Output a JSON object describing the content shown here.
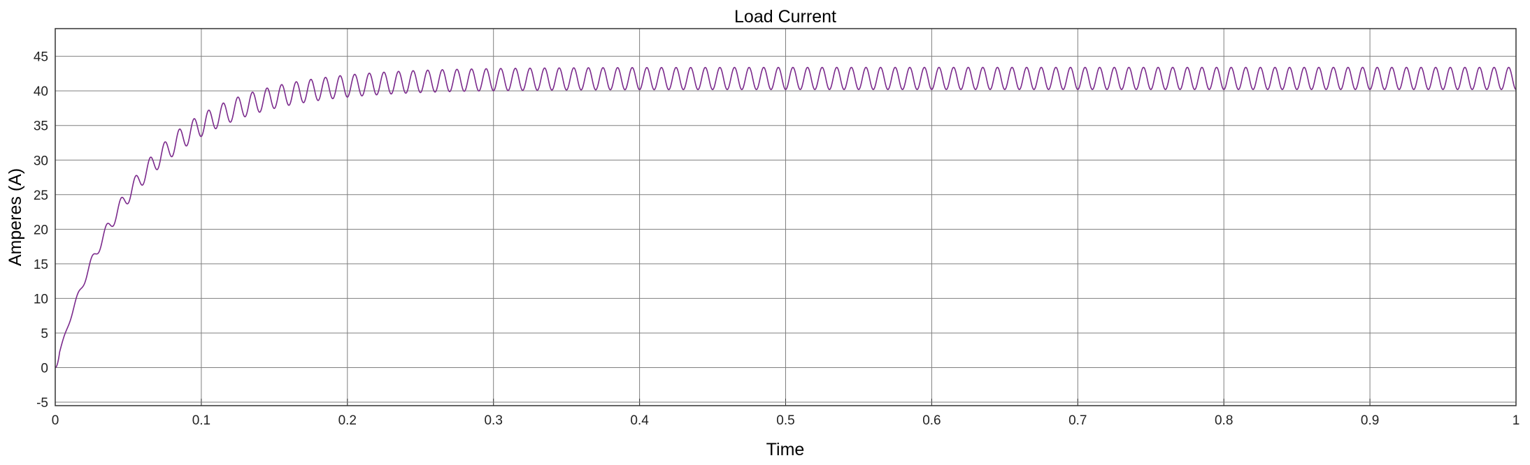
{
  "chart_data": {
    "type": "line",
    "title": "Load Current",
    "xlabel": "Time",
    "ylabel": "Amperes (A)",
    "xlim": [
      0,
      1
    ],
    "ylim": [
      -5.5,
      49
    ],
    "x_ticks": [
      "0",
      "0.1",
      "0.2",
      "0.3",
      "0.4",
      "0.5",
      "0.6",
      "0.7",
      "0.8",
      "0.9",
      "1"
    ],
    "y_ticks": [
      "-5",
      "0",
      "5",
      "10",
      "15",
      "20",
      "25",
      "30",
      "35",
      "40",
      "45"
    ],
    "grid": true,
    "line_color": "#7b2a8c",
    "series": [
      {
        "name": "",
        "description": "rectifier-style load current ramping from 0 toward ~41.8 A with ~100 Hz ripple of about ±1.5 A",
        "t_start": 0,
        "t_end": 1,
        "steady_state_mean": 41.8,
        "steady_state_min": 40.2,
        "steady_state_max": 43.4,
        "ripple_period": 0.01,
        "rise_time_constant": 0.055
      }
    ]
  }
}
